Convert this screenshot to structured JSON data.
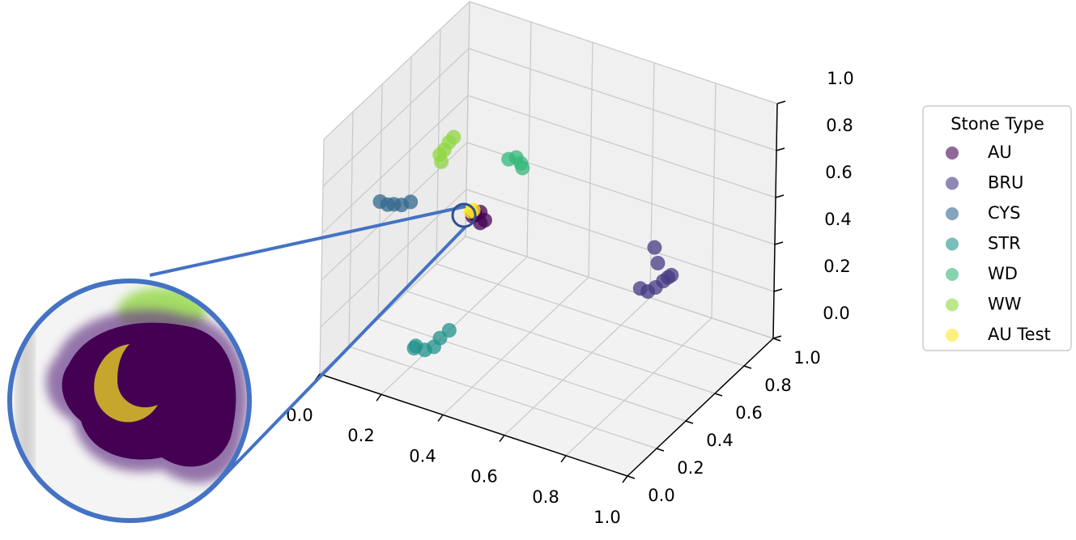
{
  "chart_data": {
    "type": "scatter3d",
    "xlim": [
      0,
      1
    ],
    "ylim": [
      0,
      1
    ],
    "zlim": [
      0,
      1
    ],
    "xticks": [
      {
        "value": 0,
        "label": "0.0"
      },
      {
        "value": 0.2,
        "label": "0.2"
      },
      {
        "value": 0.4,
        "label": "0.4"
      },
      {
        "value": 0.6,
        "label": "0.6"
      },
      {
        "value": 0.8,
        "label": "0.8"
      },
      {
        "value": 1,
        "label": "1.0"
      }
    ],
    "yticks": [
      {
        "value": 0,
        "label": "0.0"
      },
      {
        "value": 0.2,
        "label": "0.2"
      },
      {
        "value": 0.4,
        "label": "0.4"
      },
      {
        "value": 0.6,
        "label": "0.6"
      },
      {
        "value": 0.8,
        "label": "0.8"
      },
      {
        "value": 1,
        "label": "1.0"
      }
    ],
    "zticks": [
      {
        "value": 0,
        "label": "0.0"
      },
      {
        "value": 0.2,
        "label": "0.2"
      },
      {
        "value": 0.4,
        "label": "0.4"
      },
      {
        "value": 0.6,
        "label": "0.6"
      },
      {
        "value": 0.8,
        "label": "0.8"
      },
      {
        "value": 1,
        "label": "1.0"
      }
    ],
    "grid": true,
    "legend_title": "Stone Type",
    "legend": "right",
    "series": [
      {
        "name": "AU",
        "color": "#440154",
        "x": [
          0.24,
          0.25,
          0.27,
          0.26,
          0.23
        ],
        "y": [
          0.55,
          0.56,
          0.55,
          0.54,
          0.55
        ],
        "z": [
          0.46,
          0.47,
          0.45,
          0.44,
          0.45
        ]
      },
      {
        "name": "BRU",
        "color": "#443983",
        "x": [
          0.6,
          0.62,
          0.64,
          0.66,
          0.68,
          0.7,
          0.66,
          0.63
        ],
        "y": [
          0.93,
          0.94,
          0.95,
          0.96,
          0.95,
          0.93,
          0.92,
          0.96
        ],
        "z": [
          0.08,
          0.07,
          0.09,
          0.12,
          0.15,
          0.18,
          0.22,
          0.25
        ]
      },
      {
        "name": "CYS",
        "color": "#31688e",
        "x": [
          0,
          0.02,
          0.04,
          0.06,
          0.08
        ],
        "y": [
          0.4,
          0.41,
          0.41,
          0.42,
          0.44
        ],
        "z": [
          0.5,
          0.49,
          0.5,
          0.5,
          0.51
        ]
      },
      {
        "name": "STR",
        "color": "#21918c",
        "x": [
          0.22,
          0.23,
          0.25,
          0.27,
          0.28,
          0.3
        ],
        "y": [
          0.18,
          0.17,
          0.19,
          0.21,
          0.23,
          0.25
        ],
        "z": [
          0.1,
          0.12,
          0.1,
          0.11,
          0.14,
          0.17
        ]
      },
      {
        "name": "WD",
        "color": "#35b779",
        "x": [
          0.26,
          0.28,
          0.3,
          0.31
        ],
        "y": [
          0.73,
          0.74,
          0.73,
          0.72
        ],
        "z": [
          0.6,
          0.61,
          0.6,
          0.59
        ]
      },
      {
        "name": "WW",
        "color": "#90d743",
        "x": [
          0.13,
          0.14,
          0.15,
          0.16,
          0.14
        ],
        "y": [
          0.53,
          0.54,
          0.55,
          0.56,
          0.52
        ],
        "z": [
          0.68,
          0.7,
          0.73,
          0.75,
          0.66
        ]
      },
      {
        "name": "AU Test",
        "color": "#fde725",
        "x": [
          0.22,
          0.225
        ],
        "y": [
          0.56,
          0.565
        ],
        "z": [
          0.46,
          0.465
        ]
      }
    ]
  }
}
